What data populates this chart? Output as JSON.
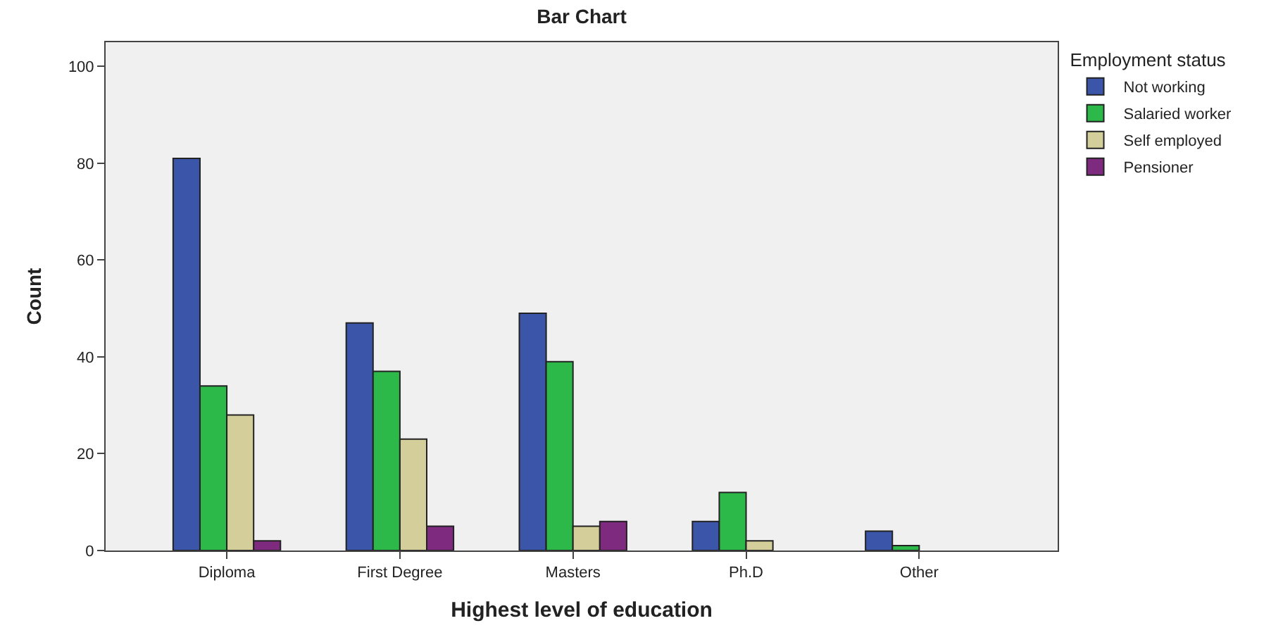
{
  "chart_data": {
    "type": "bar",
    "title": "Bar Chart",
    "xlabel": "Highest level of education",
    "ylabel": "Count",
    "legend_title": "Employment status",
    "categories": [
      "Diploma",
      "First Degree",
      "Masters",
      "Ph.D",
      "Other"
    ],
    "series": [
      {
        "name": "Not working",
        "color": "#3b56a8",
        "values": [
          81,
          47,
          49,
          6,
          4
        ]
      },
      {
        "name": "Salaried worker",
        "color": "#2db84a",
        "values": [
          34,
          37,
          39,
          12,
          1
        ]
      },
      {
        "name": "Self employed",
        "color": "#d4cf9a",
        "values": [
          28,
          23,
          5,
          2,
          null
        ]
      },
      {
        "name": "Pensioner",
        "color": "#7e2a7e",
        "values": [
          2,
          5,
          6,
          null,
          null
        ]
      }
    ],
    "ylim": [
      0,
      105
    ],
    "yticks": [
      0,
      20,
      40,
      60,
      80,
      100
    ],
    "grid": false,
    "legend": "top right"
  }
}
